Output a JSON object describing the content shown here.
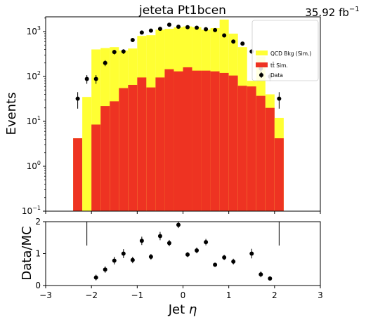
{
  "chart_data": [
    {
      "type": "bar",
      "panel": "main",
      "title": "jeteta  Pt1bcen",
      "lumi_value": "35.92",
      "lumi_unit": "fb",
      "lumi_exponent": "−1",
      "ylabel": "Events",
      "yscale": "log",
      "xlim": [
        -3,
        3
      ],
      "ylim": [
        0.1,
        2000
      ],
      "grid": false,
      "legend_placement": "top-right",
      "legend": [
        {
          "label": "QCD Bkg (Sim.)",
          "color": "#ffff33",
          "kind": "patch"
        },
        {
          "label": "tt̄ Sim.",
          "color": "#ee3322",
          "kind": "patch"
        },
        {
          "label": "Data",
          "color": "#000000",
          "kind": "marker"
        }
      ],
      "bin_edges": [
        -2.4,
        -2.2,
        -2.0,
        -1.8,
        -1.6,
        -1.4,
        -1.2,
        -1.0,
        -0.8,
        -0.6,
        -0.4,
        -0.2,
        0.0,
        0.2,
        0.4,
        0.6,
        0.8,
        1.0,
        1.2,
        1.4,
        1.6,
        1.8,
        2.0,
        2.2
      ],
      "series": [
        {
          "name": "tt̄ Sim.",
          "color": "#ee3322",
          "values": [
            4.2,
            0.0,
            8.5,
            22,
            28,
            55,
            65,
            95,
            57,
            95,
            145,
            130,
            160,
            135,
            135,
            130,
            120,
            105,
            62,
            60,
            37,
            20,
            4.2
          ]
        },
        {
          "name": "QCD Bkg (Sim.) stacked total",
          "color": "#ffff33",
          "values": [
            4.2,
            35,
            400,
            430,
            450,
            380,
            420,
            800,
            830,
            1100,
            1150,
            1250,
            1300,
            1250,
            1100,
            1200,
            1850,
            900,
            450,
            80,
            280,
            40,
            12
          ]
        }
      ],
      "data_points": {
        "name": "Data",
        "x": [
          -2.3,
          -2.1,
          -1.9,
          -1.7,
          -1.5,
          -1.3,
          -1.1,
          -0.9,
          -0.7,
          -0.5,
          -0.3,
          -0.1,
          0.1,
          0.3,
          0.5,
          0.7,
          0.9,
          1.1,
          1.3,
          1.5,
          1.7,
          1.9,
          2.1
        ],
        "y": [
          32,
          88,
          88,
          200,
          350,
          360,
          650,
          950,
          1050,
          1150,
          1420,
          1280,
          1250,
          1220,
          1130,
          1080,
          820,
          600,
          540,
          360,
          150,
          100,
          32
        ],
        "yerr_frac": [
          0.4,
          0.22,
          0.22,
          0.15,
          0.12,
          0.12,
          0.09,
          0.07,
          0.07,
          0.06,
          0.06,
          0.06,
          0.06,
          0.06,
          0.06,
          0.06,
          0.07,
          0.08,
          0.09,
          0.11,
          0.17,
          0.2,
          0.4
        ]
      }
    },
    {
      "type": "scatter",
      "panel": "ratio",
      "xlabel_text": "Jet ",
      "xlabel_symbol": "η",
      "ylabel": "Data/MC",
      "xlim": [
        -3,
        3
      ],
      "ylim": [
        0,
        2
      ],
      "x": [
        -1.9,
        -1.7,
        -1.5,
        -1.3,
        -1.1,
        -0.9,
        -0.7,
        -0.5,
        -0.3,
        -0.1,
        0.1,
        0.3,
        0.5,
        0.7,
        0.9,
        1.1,
        1.5,
        1.7,
        1.9
      ],
      "y": [
        0.25,
        0.5,
        0.78,
        1.0,
        0.8,
        1.4,
        0.9,
        1.55,
        1.33,
        1.9,
        0.97,
        1.1,
        1.36,
        0.65,
        0.88,
        0.75,
        1.0,
        0.35,
        0.22
      ],
      "yerr": [
        0.09,
        0.1,
        0.12,
        0.14,
        0.1,
        0.13,
        0.09,
        0.13,
        0.1,
        0.1,
        0.08,
        0.09,
        0.1,
        0.06,
        0.08,
        0.09,
        0.15,
        0.09,
        0.06
      ],
      "vlines_x": [
        -2.1,
        2.1
      ],
      "xticks": [
        "−3",
        "−2",
        "−1",
        "0",
        "1",
        "2",
        "3"
      ],
      "yticks": [
        "0",
        "1",
        "2"
      ]
    }
  ],
  "main_yticks": [
    {
      "base": "10",
      "exp": "−1"
    },
    {
      "base": "10",
      "exp": "0"
    },
    {
      "base": "10",
      "exp": "1"
    },
    {
      "base": "10",
      "exp": "2"
    },
    {
      "base": "10",
      "exp": "3"
    }
  ]
}
